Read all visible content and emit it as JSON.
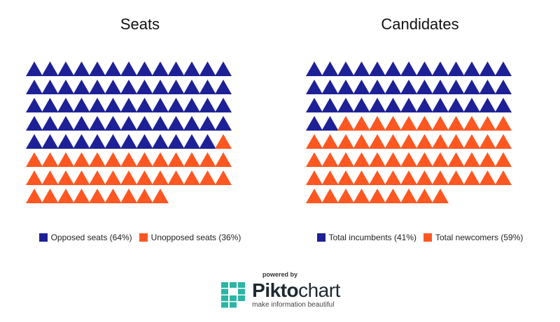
{
  "chart_data": [
    {
      "type": "waffle",
      "title": "Seats",
      "series": [
        {
          "name": "Opposed seats (64%)",
          "count": 64,
          "color": "#1e2196"
        },
        {
          "name": "Unopposed seats (36%)",
          "count": 36,
          "color": "#ff5722"
        }
      ],
      "total": 100,
      "columns": 13,
      "legend_position": "bottom"
    },
    {
      "type": "waffle",
      "title": "Candidates",
      "series": [
        {
          "name": "Total incumbents (41%)",
          "count": 41,
          "color": "#1e2196"
        },
        {
          "name": "Total newcomers (59%)",
          "count": 59,
          "color": "#ff5722"
        }
      ],
      "total": 100,
      "columns": 13,
      "legend_position": "bottom"
    }
  ],
  "footer": {
    "powered_by": "powered by",
    "brand_bold": "Pikto",
    "brand_regular": "chart",
    "tagline": "make information beautiful",
    "logo_icon": "piktochart-logo-icon",
    "logo_color": "#2bb5a4"
  }
}
